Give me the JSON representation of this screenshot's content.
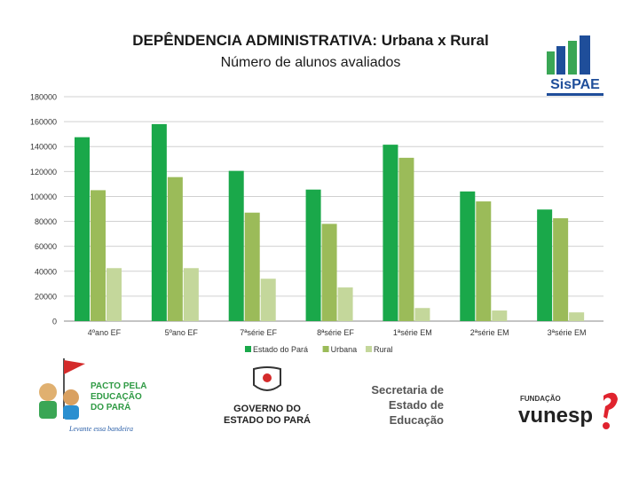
{
  "header": {
    "title": "DEPÊNDENCIA ADMINISTRATIVA: Urbana x Rural",
    "subtitle": "Número de alunos avaliados"
  },
  "logos": {
    "sispae": "SisPAE",
    "pacto_line1": "PACTO PELA",
    "pacto_line2": "EDUCAÇÃO",
    "pacto_line3": "DO PARÁ",
    "pacto_tagline": "Levante essa bandeira",
    "governo_line1": "GOVERNO DO",
    "governo_line2": "ESTADO DO PARÁ",
    "secretaria_line1": "Secretaria de",
    "secretaria_line2": "Estado de",
    "secretaria_line3": "Educação",
    "fundacao": "FUNDAÇÃO",
    "vunesp": "vunesp"
  },
  "colors": {
    "estado": "#1aa84a",
    "urbana": "#9bbb59",
    "rural": "#c4d79b",
    "sispae_blue": "#1f4e9a",
    "sispae_green": "#3aa655",
    "vunesp_red": "#e0232e"
  },
  "chart_data": {
    "type": "bar",
    "title": "DEPÊNDENCIA ADMINISTRATIVA: Urbana x Rural",
    "subtitle": "Número de alunos avaliados",
    "categories": [
      "4ºano EF",
      "5ºano EF",
      "7ªsérie EF",
      "8ªsérie EF",
      "1ªsérie EM",
      "2ªsérie EM",
      "3ªsérie EM"
    ],
    "series": [
      {
        "name": "Estado do Pará",
        "values": [
          147500,
          158000,
          120500,
          105500,
          141500,
          104000,
          89500
        ]
      },
      {
        "name": "Urbana",
        "values": [
          105000,
          115500,
          87000,
          78000,
          131000,
          96000,
          82500
        ]
      },
      {
        "name": "Rural",
        "values": [
          42500,
          42500,
          34000,
          27000,
          10500,
          8500,
          7000
        ]
      }
    ],
    "yticks": [
      "0",
      "20000",
      "40000",
      "60000",
      "80000",
      "100000",
      "120000",
      "140000",
      "160000",
      "180000"
    ],
    "ylim": [
      0,
      180000
    ],
    "grid": true,
    "legend_position": "bottom"
  }
}
